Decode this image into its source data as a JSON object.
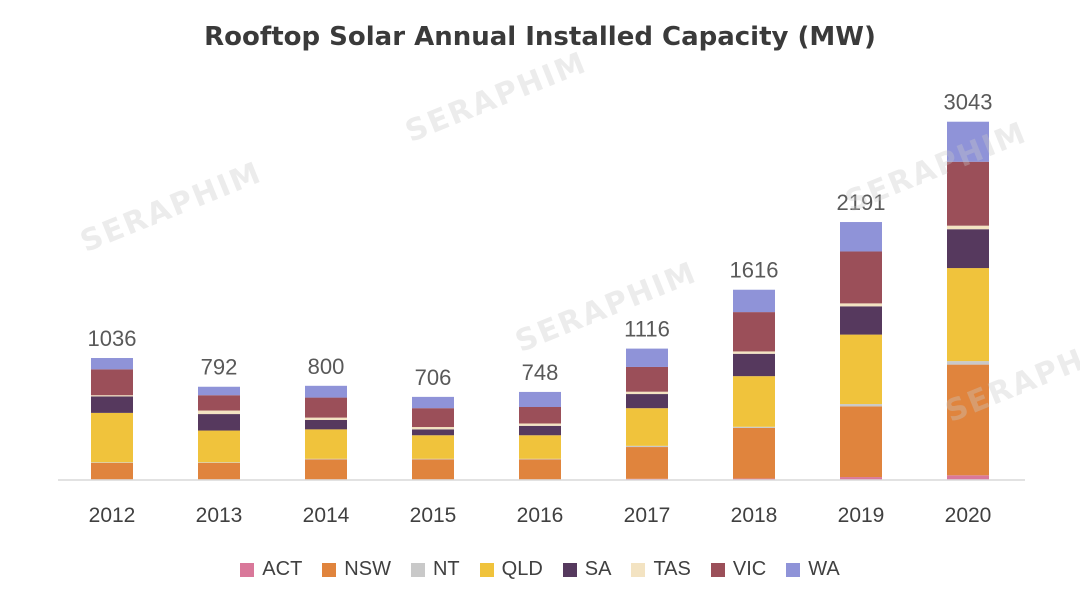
{
  "chart_data": {
    "type": "bar",
    "stacked": true,
    "title": "Rooftop Solar Annual Installed Capacity (MW)",
    "xlabel": "",
    "ylabel": "",
    "ylim": [
      0,
      3100
    ],
    "grid": false,
    "legend_position": "bottom",
    "categories": [
      "2012",
      "2013",
      "2014",
      "2015",
      "2016",
      "2017",
      "2018",
      "2019",
      "2020"
    ],
    "totals": [
      1036,
      792,
      800,
      706,
      748,
      1116,
      1616,
      2191,
      3043
    ],
    "series": [
      {
        "name": "ACT",
        "color": "#d9789a",
        "values": [
          5,
          5,
          5,
          5,
          5,
          10,
          12,
          25,
          40
        ]
      },
      {
        "name": "NSW",
        "color": "#e0843d",
        "values": [
          140,
          140,
          170,
          170,
          170,
          270,
          430,
          600,
          940
        ]
      },
      {
        "name": "NT",
        "color": "#c9c9c9",
        "values": [
          5,
          5,
          5,
          5,
          5,
          10,
          10,
          20,
          30
        ]
      },
      {
        "name": "QLD",
        "color": "#f0c33c",
        "values": [
          420,
          270,
          250,
          200,
          200,
          320,
          430,
          590,
          790
        ]
      },
      {
        "name": "SA",
        "color": "#56395e",
        "values": [
          140,
          140,
          80,
          50,
          80,
          120,
          190,
          240,
          330
        ]
      },
      {
        "name": "TAS",
        "color": "#f3e3c2",
        "values": [
          10,
          30,
          20,
          20,
          20,
          20,
          20,
          25,
          30
        ]
      },
      {
        "name": "VIC",
        "color": "#9b4f59",
        "values": [
          220,
          130,
          170,
          160,
          140,
          210,
          334,
          441,
          543
        ]
      },
      {
        "name": "WA",
        "color": "#8f93d8",
        "values": [
          96,
          72,
          100,
          96,
          128,
          156,
          190,
          250,
          340
        ]
      }
    ]
  },
  "watermark": {
    "brand": "SERAPHIM"
  }
}
